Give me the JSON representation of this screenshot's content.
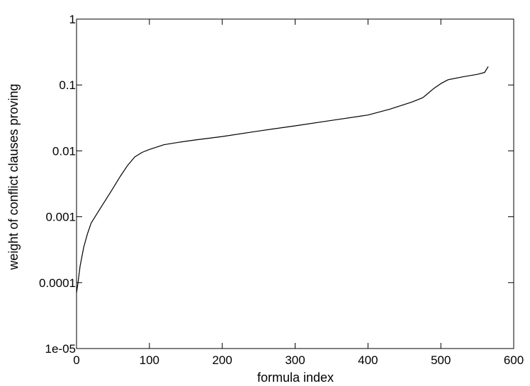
{
  "chart_data": {
    "type": "line",
    "title": "",
    "xlabel": "formula index",
    "ylabel": "weight of conflict clauses proving",
    "xlim": [
      0,
      600
    ],
    "ylim": [
      1e-05,
      1
    ],
    "yscale": "log",
    "grid": false,
    "legend": "none",
    "x_ticks": [
      {
        "value": 0,
        "label": "0"
      },
      {
        "value": 100,
        "label": "100"
      },
      {
        "value": 200,
        "label": "200"
      },
      {
        "value": 300,
        "label": "300"
      },
      {
        "value": 400,
        "label": "400"
      },
      {
        "value": 500,
        "label": "500"
      },
      {
        "value": 600,
        "label": "600"
      }
    ],
    "y_ticks": [
      {
        "value": 1e-05,
        "label": "1e-05"
      },
      {
        "value": 0.0001,
        "label": "0.0001"
      },
      {
        "value": 0.001,
        "label": "0.001"
      },
      {
        "value": 0.01,
        "label": "0.01"
      },
      {
        "value": 0.1,
        "label": "0.1"
      },
      {
        "value": 1,
        "label": "1"
      }
    ],
    "series": [
      {
        "color": "#000000",
        "x": [
          0,
          2,
          5,
          10,
          15,
          20,
          30,
          40,
          50,
          60,
          70,
          80,
          90,
          100,
          120,
          140,
          160,
          200,
          250,
          300,
          350,
          400,
          430,
          460,
          475,
          480,
          490,
          500,
          510,
          530,
          550,
          560,
          565
        ],
        "y": [
          7e-05,
          0.0001,
          0.00018,
          0.00035,
          0.00055,
          0.0008,
          0.0012,
          0.0018,
          0.0027,
          0.0041,
          0.006,
          0.0081,
          0.0095,
          0.0105,
          0.0124,
          0.0135,
          0.0145,
          0.0165,
          0.02,
          0.024,
          0.029,
          0.035,
          0.043,
          0.055,
          0.064,
          0.071,
          0.088,
          0.105,
          0.12,
          0.133,
          0.145,
          0.155,
          0.19
        ]
      }
    ]
  }
}
